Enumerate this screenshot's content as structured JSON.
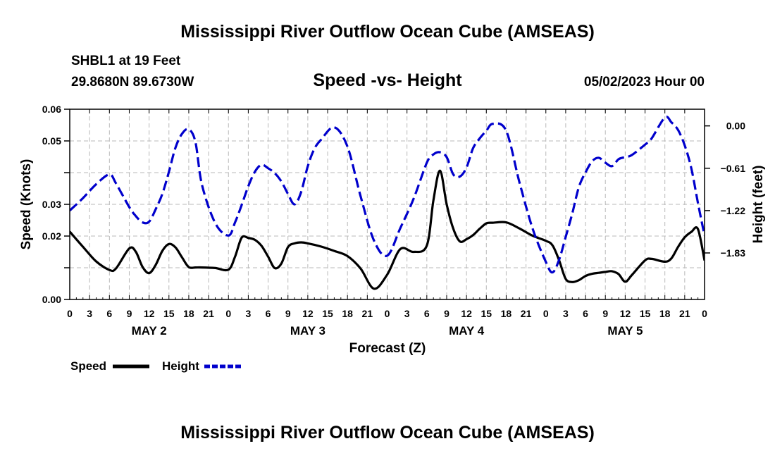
{
  "title": "Mississippi River Outflow Ocean Cube (AMSEAS)",
  "footer_title": "Mississippi River Outflow Ocean Cube (AMSEAS)",
  "station": {
    "name_depth": "SHBL1 at 19 Feet",
    "coords": "29.8680N  89.6730W"
  },
  "forecast_time": "05/02/2023 Hour 00",
  "colors": {
    "speed": "#000000",
    "height": "#0000cc",
    "grid": "#b8b8b8"
  },
  "chart_data": {
    "type": "line",
    "title": "Speed -vs- Height",
    "xlabel": "Forecast (Z)",
    "ylabel": "Speed (Knots)",
    "y2label": "Height (feet)",
    "xlim": [
      0,
      96
    ],
    "ylim": [
      0,
      0.06
    ],
    "y2lim": [
      -2.5,
      0.24
    ],
    "x_ticks": [
      0,
      3,
      6,
      9,
      12,
      15,
      18,
      21,
      24,
      27,
      30,
      33,
      36,
      39,
      42,
      45,
      48,
      51,
      54,
      57,
      60,
      63,
      66,
      69,
      72,
      75,
      78,
      81,
      84,
      87,
      90,
      93,
      96
    ],
    "x_tick_labels": [
      "0",
      "3",
      "6",
      "9",
      "12",
      "15",
      "18",
      "21",
      "0",
      "3",
      "6",
      "9",
      "12",
      "15",
      "18",
      "21",
      "0",
      "3",
      "6",
      "9",
      "12",
      "15",
      "18",
      "21",
      "0",
      "3",
      "6",
      "9",
      "12",
      "15",
      "18",
      "21",
      "0"
    ],
    "day_labels": [
      {
        "x": 12,
        "label": "MAY 2"
      },
      {
        "x": 36,
        "label": "MAY 3"
      },
      {
        "x": 60,
        "label": "MAY 4"
      },
      {
        "x": 84,
        "label": "MAY 5"
      }
    ],
    "y_ticks": [
      0.0,
      0.02,
      0.03,
      0.05,
      0.06
    ],
    "y_tick_labels": [
      "0.00",
      "0.02",
      "0.03",
      "0.05",
      "0.06"
    ],
    "y_minor_ticks": [
      0.01,
      0.04
    ],
    "y2_ticks": [
      0.0,
      -0.61,
      -1.22,
      -1.83
    ],
    "y2_tick_labels": [
      "0.00",
      "−0.61",
      "−1.22",
      "−1.83"
    ],
    "legend": [
      {
        "name": "Speed",
        "style": "solid"
      },
      {
        "name": "Height",
        "style": "dashed"
      }
    ],
    "series": [
      {
        "name": "Speed",
        "axis": "left",
        "x": [
          0,
          2,
          4,
          6,
          7,
          9,
          10,
          11,
          12,
          13,
          14,
          15,
          16,
          17,
          18,
          19,
          20,
          22,
          24,
          25,
          26,
          27,
          28,
          29,
          30,
          31,
          32,
          33,
          34,
          35,
          36,
          38,
          40,
          42,
          44,
          46,
          48,
          50,
          52,
          54,
          55,
          56,
          57,
          58,
          59,
          60,
          61,
          62,
          63,
          64,
          66,
          68,
          70,
          72,
          73,
          74,
          75,
          76,
          77,
          78,
          79,
          80,
          81,
          82,
          83,
          84,
          85,
          87,
          88,
          90,
          91,
          92,
          93,
          94,
          95,
          96
        ],
        "values": [
          0.0214,
          0.0166,
          0.012,
          0.0093,
          0.0098,
          0.0161,
          0.015,
          0.0103,
          0.0083,
          0.0109,
          0.0153,
          0.0175,
          0.0164,
          0.0132,
          0.0102,
          0.0101,
          0.0101,
          0.0099,
          0.0094,
          0.0135,
          0.0195,
          0.0194,
          0.0188,
          0.0169,
          0.0135,
          0.0099,
          0.0113,
          0.0165,
          0.0177,
          0.018,
          0.0177,
          0.0167,
          0.0153,
          0.0137,
          0.0097,
          0.0034,
          0.0078,
          0.0159,
          0.015,
          0.017,
          0.0313,
          0.0406,
          0.03,
          0.0223,
          0.0183,
          0.019,
          0.0203,
          0.0223,
          0.024,
          0.0242,
          0.0243,
          0.0224,
          0.0201,
          0.0185,
          0.0171,
          0.0124,
          0.0065,
          0.0055,
          0.0061,
          0.0074,
          0.0081,
          0.0084,
          0.0087,
          0.0089,
          0.008,
          0.0056,
          0.0077,
          0.0123,
          0.0128,
          0.0119,
          0.013,
          0.0166,
          0.0196,
          0.0213,
          0.0222,
          0.0123
        ]
      },
      {
        "name": "Height",
        "axis": "right",
        "x": [
          0,
          2,
          4,
          6,
          7,
          9,
          10,
          11,
          12,
          13,
          14,
          15,
          16,
          17,
          18,
          19,
          20,
          22,
          24,
          25,
          26,
          27,
          28,
          29,
          30,
          31,
          32,
          33,
          34,
          35,
          36,
          37,
          38,
          40,
          42,
          44,
          46,
          48,
          50,
          52,
          54,
          55,
          56,
          57,
          58,
          59,
          60,
          61,
          62,
          63,
          64,
          66,
          68,
          70,
          72,
          73,
          74,
          75,
          76,
          77,
          78,
          79,
          80,
          81,
          82,
          83,
          84,
          85,
          87,
          88,
          90,
          91,
          92,
          93,
          94,
          95,
          96
        ],
        "values": [
          -1.22,
          -1.04,
          -0.84,
          -0.7,
          -0.83,
          -1.17,
          -1.3,
          -1.39,
          -1.38,
          -1.2,
          -0.98,
          -0.66,
          -0.31,
          -0.11,
          -0.05,
          -0.23,
          -0.85,
          -1.4,
          -1.58,
          -1.39,
          -1.14,
          -0.87,
          -0.66,
          -0.56,
          -0.61,
          -0.68,
          -0.8,
          -0.98,
          -1.13,
          -0.95,
          -0.58,
          -0.33,
          -0.2,
          -0.02,
          -0.3,
          -1.02,
          -1.65,
          -1.87,
          -1.47,
          -1.05,
          -0.53,
          -0.41,
          -0.38,
          -0.45,
          -0.7,
          -0.73,
          -0.6,
          -0.32,
          -0.18,
          -0.07,
          0.03,
          -0.07,
          -0.81,
          -1.48,
          -1.96,
          -2.11,
          -1.93,
          -1.6,
          -1.26,
          -0.88,
          -0.67,
          -0.51,
          -0.46,
          -0.53,
          -0.58,
          -0.48,
          -0.45,
          -0.42,
          -0.27,
          -0.18,
          0.12,
          0.05,
          -0.06,
          -0.28,
          -0.61,
          -1.11,
          -1.58
        ]
      }
    ]
  }
}
